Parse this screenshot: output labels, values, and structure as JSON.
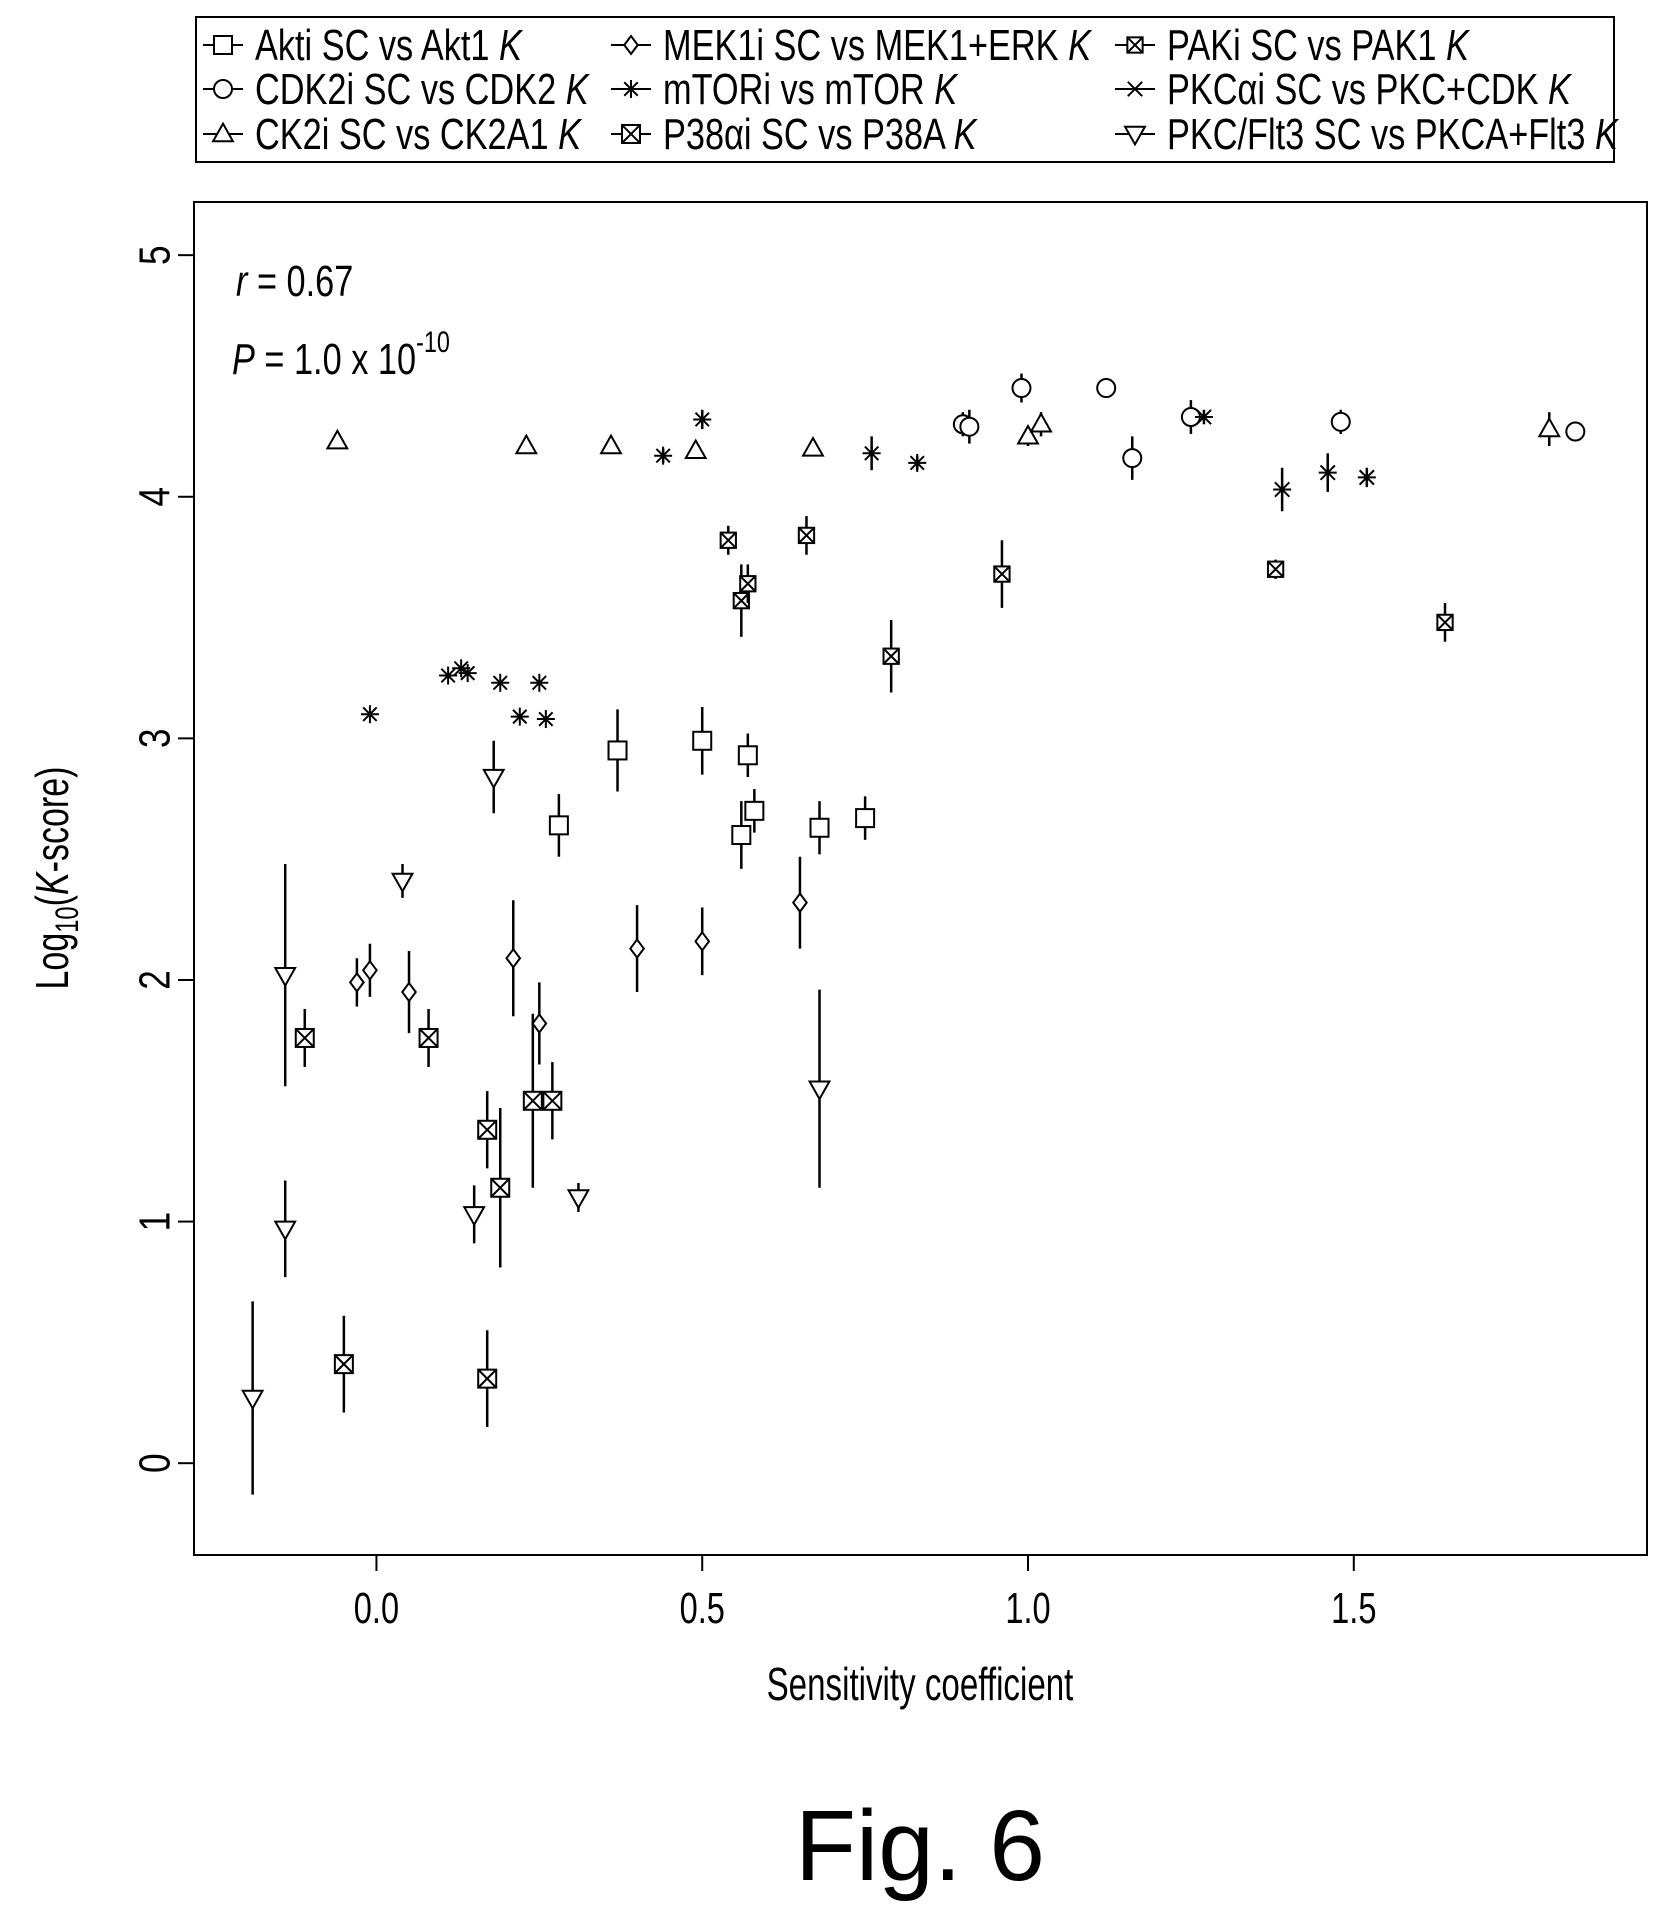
{
  "figure_caption": "Fig. 6",
  "chart_data": {
    "type": "scatter",
    "title": "",
    "xlabel": "Sensitivity coefficient",
    "ylabel_prefix": "Log",
    "ylabel_sub": "10",
    "ylabel_open": "(",
    "ylabel_italic": "K",
    "ylabel_rest": "-score)",
    "xlim": [
      -0.28,
      1.95
    ],
    "ylim": [
      -0.38,
      5.22
    ],
    "x_ticks": [
      {
        "value": 0.0,
        "label": "0.0"
      },
      {
        "value": 0.5,
        "label": "0.5"
      },
      {
        "value": 1.0,
        "label": "1.0"
      },
      {
        "value": 1.5,
        "label": "1.5"
      }
    ],
    "y_ticks": [
      {
        "value": 0,
        "label": "0"
      },
      {
        "value": 1,
        "label": "1"
      },
      {
        "value": 2,
        "label": "2"
      },
      {
        "value": 3,
        "label": "3"
      },
      {
        "value": 4,
        "label": "4"
      },
      {
        "value": 5,
        "label": "5"
      }
    ],
    "grid": false,
    "legend_position": "top",
    "annotations": {
      "r_italic": "r",
      "r_rest": " = 0.67",
      "p_italic": "P",
      "p_rest": " = 1.0 x 10",
      "p_exp": "-10"
    },
    "series": [
      {
        "name_main": "Akti SC vs Akt1 ",
        "name_italic": "K",
        "marker": "square",
        "points": [
          [
            0.28,
            2.64,
            0.13
          ],
          [
            0.37,
            2.95,
            0.17
          ],
          [
            0.5,
            2.99,
            0.14
          ],
          [
            0.56,
            2.6,
            0.14
          ],
          [
            0.57,
            2.93,
            0.09
          ],
          [
            0.58,
            2.7,
            0.09
          ],
          [
            0.68,
            2.63,
            0.11
          ],
          [
            0.75,
            2.67,
            0.09
          ]
        ]
      },
      {
        "name_main": "CDK2i SC vs CDK2 ",
        "name_italic": "K",
        "marker": "circle",
        "points": [
          [
            0.9,
            4.3,
            0.05
          ],
          [
            0.91,
            4.29,
            0.07
          ],
          [
            0.99,
            4.45,
            0.06
          ],
          [
            1.12,
            4.45,
            0.03
          ],
          [
            1.16,
            4.16,
            0.09
          ],
          [
            1.25,
            4.33,
            0.07
          ],
          [
            1.48,
            4.31,
            0.05
          ],
          [
            1.84,
            4.27,
            0.02
          ]
        ]
      },
      {
        "name_main": "CK2i SC vs CK2A1 ",
        "name_italic": "K",
        "marker": "triangle-up",
        "points": [
          [
            -0.06,
            4.23,
            0.02
          ],
          [
            0.23,
            4.21,
            0.02
          ],
          [
            0.36,
            4.21,
            0.02
          ],
          [
            0.49,
            4.19,
            0.02
          ],
          [
            0.67,
            4.2,
            0.03
          ],
          [
            1.0,
            4.25,
            0.04
          ],
          [
            1.02,
            4.3,
            0.05
          ],
          [
            1.8,
            4.28,
            0.07
          ]
        ]
      },
      {
        "name_main": "MEK1i SC vs MEK1+ERK ",
        "name_italic": "K",
        "marker": "diamond",
        "points": [
          [
            -0.03,
            1.99,
            0.1
          ],
          [
            -0.01,
            2.04,
            0.11
          ],
          [
            0.05,
            1.95,
            0.17
          ],
          [
            0.21,
            2.09,
            0.24
          ],
          [
            0.25,
            1.82,
            0.17
          ],
          [
            0.4,
            2.13,
            0.18
          ],
          [
            0.5,
            2.16,
            0.14
          ],
          [
            0.65,
            2.32,
            0.19
          ]
        ]
      },
      {
        "name_main": "mTORi vs mTOR ",
        "name_italic": "K",
        "marker": "asterisk",
        "points": [
          [
            -0.01,
            3.1,
            0
          ],
          [
            0.11,
            3.26,
            0
          ],
          [
            0.13,
            3.29,
            0
          ],
          [
            0.14,
            3.27,
            0
          ],
          [
            0.19,
            3.23,
            0
          ],
          [
            0.22,
            3.09,
            0
          ],
          [
            0.25,
            3.23,
            0
          ],
          [
            0.26,
            3.08,
            0
          ],
          [
            0.44,
            4.17,
            0.03
          ],
          [
            0.5,
            4.32,
            0.04
          ],
          [
            0.76,
            4.18,
            0.07
          ],
          [
            0.83,
            4.14,
            0.03
          ]
        ]
      },
      {
        "name_main": "P38αi SC vs P38A ",
        "name_italic": "K",
        "marker": "boxx",
        "points": [
          [
            -0.11,
            1.76,
            0.12
          ],
          [
            -0.05,
            0.41,
            0.2
          ],
          [
            0.08,
            1.76,
            0.12
          ],
          [
            0.17,
            1.38,
            0.16
          ],
          [
            0.17,
            0.35,
            0.2
          ],
          [
            0.19,
            1.14,
            0.33
          ],
          [
            0.24,
            1.5,
            0.36
          ],
          [
            0.27,
            1.5,
            0.16
          ]
        ]
      },
      {
        "name_main": "PAKi SC vs PAK1 ",
        "name_italic": "K",
        "marker": "boxx-small",
        "points": [
          [
            0.54,
            3.82,
            0.06
          ],
          [
            0.56,
            3.57,
            0.15
          ],
          [
            0.57,
            3.64,
            0.08
          ],
          [
            0.66,
            3.84,
            0.08
          ],
          [
            0.79,
            3.34,
            0.15
          ],
          [
            0.96,
            3.68,
            0.14
          ],
          [
            1.38,
            3.7,
            0.04
          ],
          [
            1.64,
            3.48,
            0.08
          ]
        ]
      },
      {
        "name_main": "PKCαi SC vs PKC+CDK ",
        "name_italic": "K",
        "marker": "cross",
        "points": [
          [
            1.27,
            4.33,
            0.03
          ],
          [
            1.39,
            4.03,
            0.09
          ],
          [
            1.46,
            4.1,
            0.08
          ],
          [
            1.52,
            4.08,
            0.04
          ]
        ]
      },
      {
        "name_main": "PKC/Flt3 SC vs PKCA+Flt3 ",
        "name_italic": "K",
        "marker": "triangle-down",
        "points": [
          [
            -0.19,
            0.27,
            0.4
          ],
          [
            -0.14,
            2.02,
            0.46
          ],
          [
            -0.14,
            0.97,
            0.2
          ],
          [
            0.04,
            2.41,
            0.07
          ],
          [
            0.15,
            1.03,
            0.12
          ],
          [
            0.18,
            2.84,
            0.15
          ],
          [
            0.31,
            1.1,
            0.06
          ],
          [
            0.68,
            1.55,
            0.41
          ]
        ]
      }
    ]
  }
}
